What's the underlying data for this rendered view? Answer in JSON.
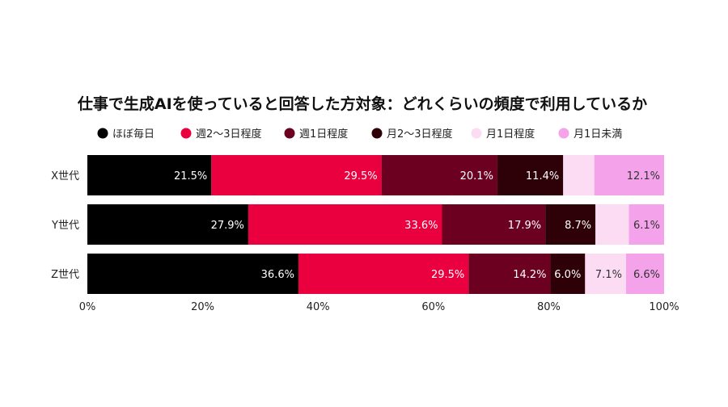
{
  "chart_data": {
    "type": "bar",
    "orientation": "horizontal",
    "stacked": true,
    "title": "仕事で生成AIを使っていると回答した方対象：どれくらいの頻度で利用しているか",
    "categories": [
      "X世代",
      "Y世代",
      "Z世代"
    ],
    "series": [
      {
        "name": "ほぼ毎日",
        "color": "#000000",
        "label_color": "#ffffff",
        "values": [
          21.5,
          27.9,
          36.6
        ],
        "labels": [
          "21.5%",
          "27.9%",
          "36.6%"
        ]
      },
      {
        "name": "週2〜3日程度",
        "color": "#ea003f",
        "label_color": "#ffffff",
        "values": [
          29.5,
          33.6,
          29.5
        ],
        "labels": [
          "29.5%",
          "33.6%",
          "29.5%"
        ]
      },
      {
        "name": "週1日程度",
        "color": "#6b0020",
        "label_color": "#ffffff",
        "values": [
          20.1,
          17.9,
          14.2
        ],
        "labels": [
          "20.1%",
          "17.9%",
          "14.2%"
        ]
      },
      {
        "name": "月2〜3日程度",
        "color": "#2e0008",
        "label_color": "#ffffff",
        "values": [
          11.4,
          8.7,
          6.0
        ],
        "labels": [
          "11.4%",
          "8.7%",
          "6.0%"
        ]
      },
      {
        "name": "月1日程度",
        "color": "#fbdcf3",
        "label_color": "#333333",
        "values": [
          5.4,
          5.8,
          7.1
        ],
        "labels": [
          "",
          "",
          "7.1%"
        ]
      },
      {
        "name": "月1日未満",
        "color": "#f4a3ea",
        "label_color": "#333333",
        "values": [
          12.1,
          6.1,
          6.6
        ],
        "labels": [
          "12.1%",
          "6.1%",
          "6.6%"
        ]
      }
    ],
    "xlim": [
      0,
      100
    ],
    "xticks": [
      "0%",
      "20%",
      "40%",
      "60%",
      "80%",
      "100%"
    ],
    "legend_position": "top",
    "grid": false
  }
}
